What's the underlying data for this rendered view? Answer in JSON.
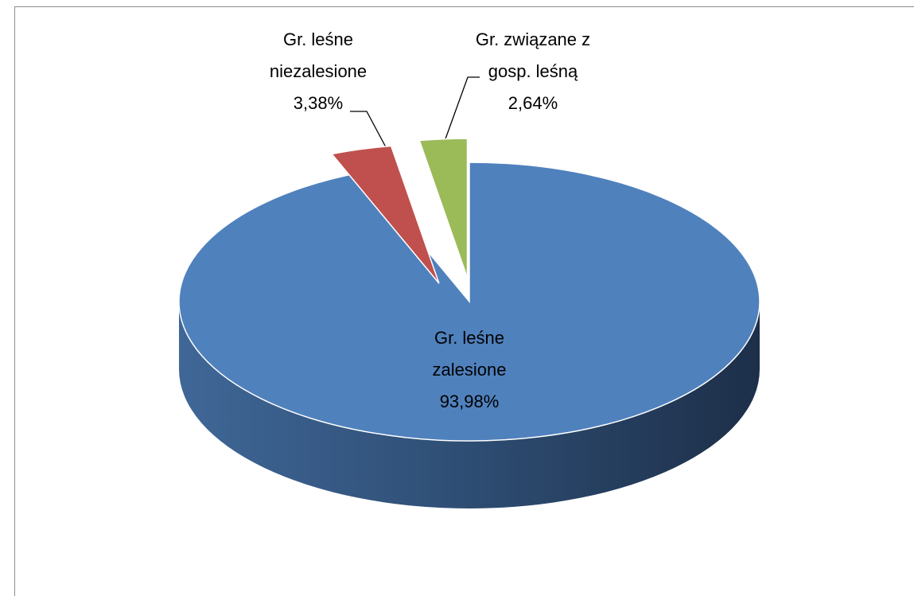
{
  "chart_data": {
    "type": "pie",
    "categories": [
      "Gr. leśne zalesione",
      "Gr. leśne niezalesione",
      "Gr. związane z gosp. leśną"
    ],
    "values": [
      93.98,
      3.38,
      2.64
    ],
    "value_labels": [
      "93,98%",
      "3,38%",
      "2,64%"
    ],
    "colors": [
      "#4f81bd",
      "#c0504d",
      "#9bbb59"
    ]
  }
}
